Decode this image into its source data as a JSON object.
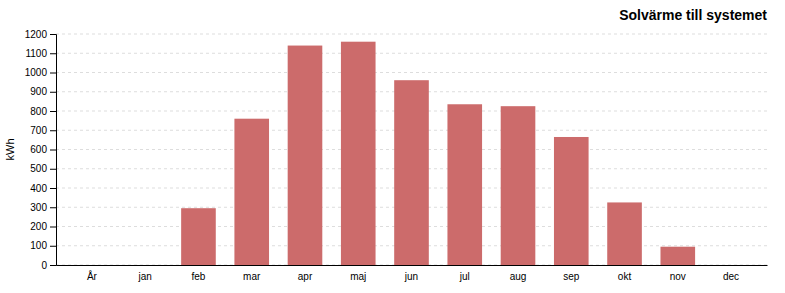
{
  "chart_data": {
    "type": "bar",
    "title": "Solvärme till systemet",
    "ylabel": "kWh",
    "categories": [
      "År",
      "jan",
      "feb",
      "mar",
      "apr",
      "maj",
      "jun",
      "jul",
      "aug",
      "sep",
      "okt",
      "nov",
      "dec"
    ],
    "values": [
      0,
      0,
      295,
      760,
      1140,
      1160,
      960,
      835,
      825,
      665,
      325,
      95,
      0
    ],
    "color": "#cc6b6b",
    "ylim": [
      0,
      1200
    ],
    "yticks": [
      0,
      100,
      200,
      300,
      400,
      500,
      600,
      700,
      800,
      900,
      1000,
      1100,
      1200
    ],
    "grid": true
  }
}
